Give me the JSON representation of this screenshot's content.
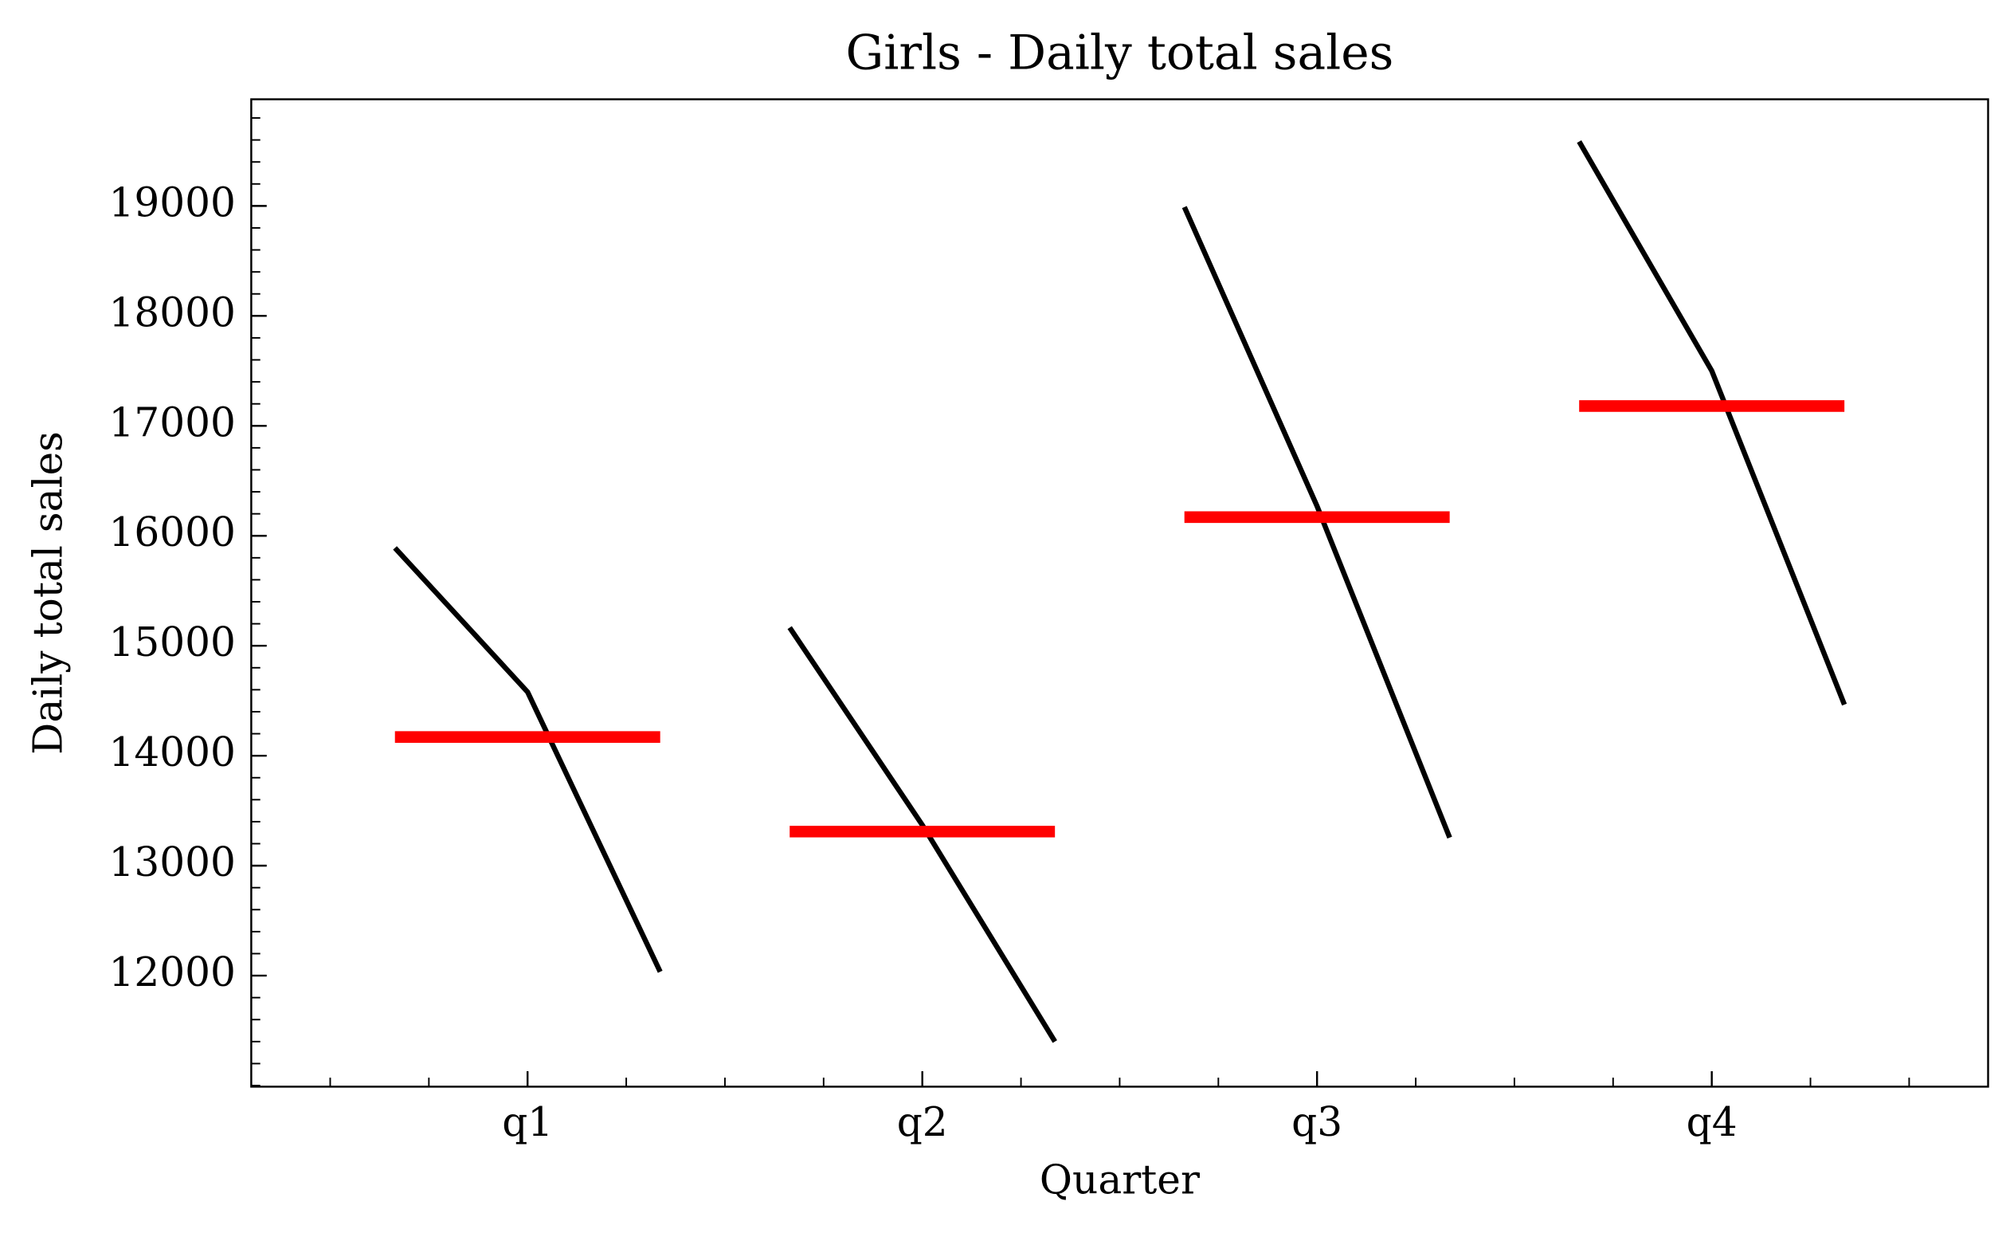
{
  "chart_data": {
    "type": "quarter",
    "title": "Girls - Daily total sales",
    "xlabel": "Quarter",
    "ylabel": "Daily total sales",
    "categories": [
      "q1",
      "q2",
      "q3",
      "q4"
    ],
    "values": [
      [
        15890,
        14580,
        12035
      ],
      [
        15165,
        13370,
        11400
      ],
      [
        18990,
        16270,
        13255
      ],
      [
        19585,
        17500,
        14465
      ]
    ],
    "means": [
      14170,
      13310,
      16170,
      17180
    ],
    "color": "#000000",
    "mean_color": "#ff0000",
    "ylim": [
      10990,
      19970
    ],
    "yticks": [
      12000,
      13000,
      14000,
      15000,
      16000,
      17000,
      18000,
      19000
    ]
  }
}
